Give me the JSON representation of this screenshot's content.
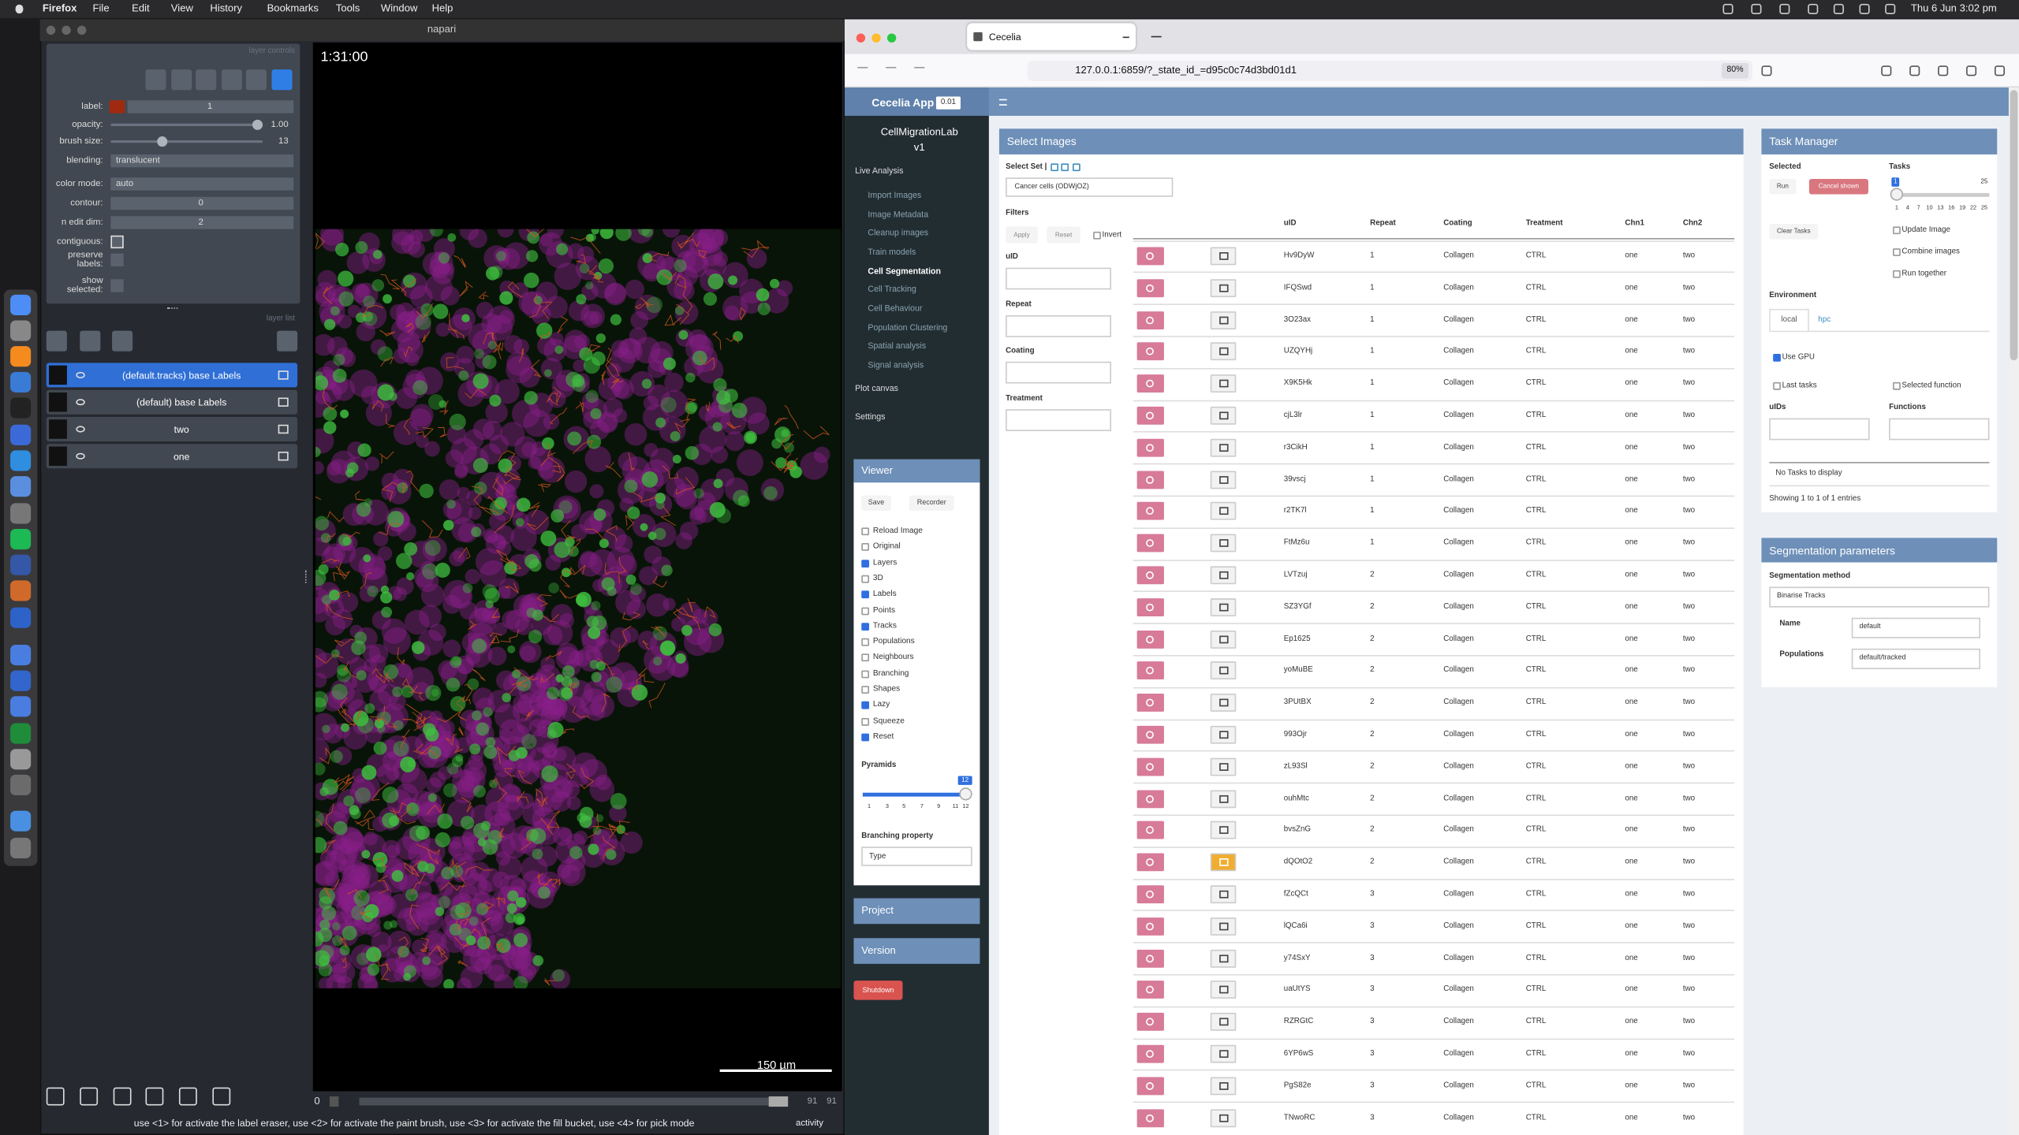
{
  "menubar": {
    "app": "Firefox",
    "menus": [
      "File",
      "Edit",
      "View",
      "History",
      "Bookmarks",
      "Tools",
      "Window",
      "Help"
    ],
    "clock": "Thu 6 Jun  3:02 pm"
  },
  "napari": {
    "title": "napari",
    "timestamp": "1:31:00",
    "layer_controls_header": "layer controls",
    "controls": [
      {
        "label": "label:",
        "value": "1"
      },
      {
        "label": "opacity:",
        "value": "1.00"
      },
      {
        "label": "brush size:",
        "value": "13"
      },
      {
        "label": "blending:",
        "value": "translucent"
      },
      {
        "label": "color mode:",
        "value": "auto"
      },
      {
        "label": "contour:",
        "value": "0"
      },
      {
        "label": "n edit dim:",
        "value": "2"
      },
      {
        "label": "contiguous:"
      },
      {
        "label": "preserve labels:"
      },
      {
        "label": "show selected:"
      }
    ],
    "layer_list_header": "layer list",
    "layers": [
      "(default.tracks) base Labels",
      "(default) base Labels",
      "two",
      "one"
    ],
    "scale_bar": "150 µm",
    "frame": "0",
    "frame_max": "91",
    "frame_total": "91",
    "status": "use <1> for activate the label eraser, use <2> for activate the paint brush, use <3> for activate the fill bucket, use <4> for pick mode",
    "activity": "activity"
  },
  "browser": {
    "tab": "Cecelia",
    "url": "127.0.0.1:6859/?_state_id_=d95c0c74d3bd01d1",
    "zoom": "80%"
  },
  "app": {
    "brand": "Cecelia App",
    "version": "0.01",
    "project_name": "CellMigrationLab",
    "project_version": "v1",
    "nav": {
      "live": "Live Analysis",
      "items": [
        "Import Images",
        "Image Metadata",
        "Cleanup images",
        "Train models",
        "Cell Segmentation",
        "Cell Tracking",
        "Cell Behaviour",
        "Population Clustering",
        "Spatial analysis",
        "Signal analysis"
      ],
      "plot": "Plot canvas",
      "settings": "Settings"
    },
    "viewer": {
      "title": "Viewer",
      "buttons": [
        "Save",
        "Recorder"
      ],
      "options": [
        {
          "label": "Reload Image",
          "checked": false
        },
        {
          "label": "Original",
          "checked": false
        },
        {
          "label": "Layers",
          "checked": true
        },
        {
          "label": "3D",
          "checked": false
        },
        {
          "label": "Labels",
          "checked": true
        },
        {
          "label": "Points",
          "checked": false
        },
        {
          "label": "Tracks",
          "checked": true
        },
        {
          "label": "Populations",
          "checked": false
        },
        {
          "label": "Neighbours",
          "checked": false
        },
        {
          "label": "Branching",
          "checked": false
        },
        {
          "label": "Shapes",
          "checked": false
        },
        {
          "label": "Lazy",
          "checked": true
        },
        {
          "label": "Squeeze",
          "checked": false
        },
        {
          "label": "Reset",
          "checked": true
        }
      ],
      "pyramids_label": "Pyramids",
      "pyramids_value": "12",
      "pyramids_ticks": [
        "1",
        "3",
        "5",
        "7",
        "9",
        "11",
        "12"
      ],
      "branching_label": "Branching property",
      "branching_value": "Type"
    },
    "project_box": "Project",
    "version_box": "Version",
    "shutdown": "Shutdown",
    "select_images": {
      "title": "Select Images",
      "select_set": "Select Set |",
      "set_value": "Cancer cells (ODWjOZ)",
      "filters": "Filters",
      "apply": "Apply",
      "reset": "Reset",
      "invert": "Invert",
      "filter_fields": [
        "uID",
        "Repeat",
        "Coating",
        "Treatment"
      ],
      "table": {
        "headers": [
          "uID",
          "Repeat",
          "Coating",
          "Treatment",
          "Chn1",
          "Chn2"
        ],
        "rows": [
          [
            "Hv9DyW",
            1,
            "Collagen",
            "CTRL",
            "one",
            "two"
          ],
          [
            "IFQSwd",
            1,
            "Collagen",
            "CTRL",
            "one",
            "two"
          ],
          [
            "3O23ax",
            1,
            "Collagen",
            "CTRL",
            "one",
            "two"
          ],
          [
            "UZQYHj",
            1,
            "Collagen",
            "CTRL",
            "one",
            "two"
          ],
          [
            "X9K5Hk",
            1,
            "Collagen",
            "CTRL",
            "one",
            "two"
          ],
          [
            "cjL3lr",
            1,
            "Collagen",
            "CTRL",
            "one",
            "two"
          ],
          [
            "r3CikH",
            1,
            "Collagen",
            "CTRL",
            "one",
            "two"
          ],
          [
            "39vscj",
            1,
            "Collagen",
            "CTRL",
            "one",
            "two"
          ],
          [
            "r2TK7l",
            1,
            "Collagen",
            "CTRL",
            "one",
            "two"
          ],
          [
            "FtMz6u",
            1,
            "Collagen",
            "CTRL",
            "one",
            "two"
          ],
          [
            "LVTzuj",
            2,
            "Collagen",
            "CTRL",
            "one",
            "two"
          ],
          [
            "SZ3YGf",
            2,
            "Collagen",
            "CTRL",
            "one",
            "two"
          ],
          [
            "Ep1625",
            2,
            "Collagen",
            "CTRL",
            "one",
            "two"
          ],
          [
            "yoMuBE",
            2,
            "Collagen",
            "CTRL",
            "one",
            "two"
          ],
          [
            "3PUtBX",
            2,
            "Collagen",
            "CTRL",
            "one",
            "two"
          ],
          [
            "993Ojr",
            2,
            "Collagen",
            "CTRL",
            "one",
            "two"
          ],
          [
            "zL93Sl",
            2,
            "Collagen",
            "CTRL",
            "one",
            "two"
          ],
          [
            "ouhMtc",
            2,
            "Collagen",
            "CTRL",
            "one",
            "two"
          ],
          [
            "bvsZnG",
            2,
            "Collagen",
            "CTRL",
            "one",
            "two"
          ],
          [
            "dQOtO2",
            2,
            "Collagen",
            "CTRL",
            "one",
            "two"
          ],
          [
            "fZcQCt",
            3,
            "Collagen",
            "CTRL",
            "one",
            "two"
          ],
          [
            "lQCa6i",
            3,
            "Collagen",
            "CTRL",
            "one",
            "two"
          ],
          [
            "y74SxY",
            3,
            "Collagen",
            "CTRL",
            "one",
            "two"
          ],
          [
            "uaUtYS",
            3,
            "Collagen",
            "CTRL",
            "one",
            "two"
          ],
          [
            "RZRGtC",
            3,
            "Collagen",
            "CTRL",
            "one",
            "two"
          ],
          [
            "6YP6wS",
            3,
            "Collagen",
            "CTRL",
            "one",
            "two"
          ],
          [
            "PgS82e",
            3,
            "Collagen",
            "CTRL",
            "one",
            "two"
          ],
          [
            "TNwoRC",
            3,
            "Collagen",
            "CTRL",
            "one",
            "two"
          ]
        ],
        "active_row": 19
      }
    },
    "task_manager": {
      "title": "Task Manager",
      "selected": "Selected",
      "run": "Run",
      "cancel": "Cancel shown",
      "tasks": "Tasks",
      "tasks_min": "1",
      "tasks_max": "25",
      "tasks_ticks": [
        "1",
        "4",
        "7",
        "10",
        "13",
        "16",
        "19",
        "22",
        "25"
      ],
      "clear": "Clear Tasks",
      "options": [
        "Update Image",
        "Combine images",
        "Run together"
      ],
      "environment": "Environment",
      "env_tabs": [
        "local",
        "hpc"
      ],
      "use_gpu": "Use GPU",
      "last_tasks": "Last tasks",
      "selected_function": "Selected function",
      "uids": "uIDs",
      "functions": "Functions",
      "empty": "No Tasks to display",
      "showing": "Showing 1 to 1 of 1 entries"
    },
    "segmentation": {
      "title": "Segmentation parameters",
      "method_label": "Segmentation method",
      "method": "Binarise Tracks",
      "name_label": "Name",
      "name": "default",
      "populations_label": "Populations",
      "populations": "default/tracked"
    }
  }
}
